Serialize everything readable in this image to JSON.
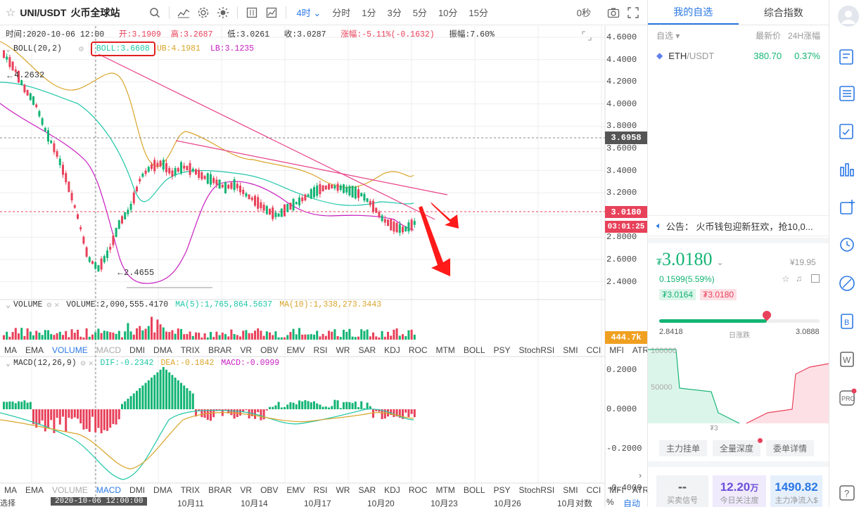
{
  "toolbar": {
    "symbol": "UNI/USDT",
    "exchange": "火币全球站",
    "periods": [
      "分时",
      "1分",
      "3分",
      "5分",
      "10分",
      "15分"
    ],
    "active_period": "4时",
    "countdown": "0秒"
  },
  "ohlc": {
    "time_label": "时间:2020-10-06 12:00",
    "open_label": "开:3.1909",
    "high_label": "高:3.2687",
    "low_label": "低:3.0261",
    "close_label": "收:3.0287",
    "change_label": "涨幅:-5.11%(-0.1632)",
    "amplitude_label": "振幅:7.60%"
  },
  "boll": {
    "name": "BOLL(20,2)",
    "mid_label": "BOLL:3.6608",
    "ub_label": "UB:4.1981",
    "lb_label": "LB:3.1235"
  },
  "price_axis": [
    "4.6000",
    "4.4000",
    "4.2000",
    "4.0000",
    "3.8000",
    "3.6000",
    "3.4000",
    "3.2000",
    "3.0000",
    "2.8000",
    "2.6000",
    "2.4000"
  ],
  "price_marks": {
    "high": "4.2632",
    "low": "2.4655",
    "crosshair_price": "3.6958",
    "last_price": "3.0180",
    "countdown": "03:01:25"
  },
  "volume": {
    "name": "VOLUME",
    "value_label": "VOLUME:2,090,555.4170",
    "ma5_label": "MA(5):1,765,864.5637",
    "ma10_label": "MA(10):1,338,273.3443",
    "axis_value": "444.7k"
  },
  "indicator_tabs": [
    "MA",
    "EMA",
    "VOLUME",
    "MACD",
    "DMI",
    "DMA",
    "TRIX",
    "BRAR",
    "VR",
    "OBV",
    "EMV",
    "RSI",
    "WR",
    "SAR",
    "KDJ",
    "ROC",
    "MTM",
    "BOLL",
    "PSY",
    "StochRSI",
    "SMI",
    "CCI",
    "MFI",
    "ATR"
  ],
  "macd": {
    "name": "MACD(12,26,9)",
    "dif_label": "DIF:-0.2342",
    "dea_label": "DEA:-0.1842",
    "macd_label": "MACD:-0.0999",
    "axis": [
      "0.2000",
      "0.0000",
      "-0.2000",
      "-0.4000"
    ]
  },
  "time_axis": {
    "crosshair_time": "2020-10-06 12:00:00",
    "dates": [
      "10月11",
      "10月14",
      "10月17",
      "10月20",
      "10月23",
      "10月26",
      "10月"
    ],
    "log_label": "对数",
    "pct_label": "%",
    "auto_label": "自动",
    "left_cut": "选择"
  },
  "right_panel": {
    "tabs": [
      "我的自选",
      "综合指数"
    ],
    "list_header": {
      "left": "自选",
      "price": "最新价",
      "change": "24H涨幅"
    },
    "watchlist": [
      {
        "coin": "ETH",
        "quote": "/USDT",
        "price": "380.70",
        "change": "0.37%"
      }
    ],
    "announcement": "公告：  火币钱包迎新狂欢，抢10,0...",
    "price_big": "3.0180",
    "price_prefix": "₮",
    "cny": "¥19.95",
    "change": "0.1599(5.59%)",
    "bid": "₮3.0164",
    "ask": "₮3.0180",
    "day_low": "2.8418",
    "day_range_label": "日涨跌",
    "day_high": "3.0888",
    "day_progress": 0.67,
    "depth_label_100k": "100000",
    "depth_label_50k": "50000",
    "depth_x_label": "₮3",
    "depth_tabs": [
      "主力挂单",
      "全量深度",
      "委单详情"
    ],
    "stats": [
      {
        "value": "--",
        "label": "买卖信号"
      },
      {
        "value": "12.20",
        "unit": "万",
        "label": "今日关注度"
      },
      {
        "value": "1490.82",
        "label": "主力净流入$"
      }
    ]
  },
  "sidebar": {
    "icons": [
      "avatar",
      "watchlist-icon",
      "news-icon",
      "notes-icon",
      "chart-bar-icon",
      "add-window-icon",
      "alarm-icon",
      "compass-icon",
      "ledger-icon",
      "w-icon",
      "pro-icon",
      "help-icon"
    ],
    "pro_label": "PRO",
    "help_label": "?"
  },
  "colors": {
    "up": "#13b474",
    "down": "#e8415a",
    "accent": "#2b78e4",
    "mid": "#21c7a8",
    "ub": "#d9a52b",
    "lb": "#c81fc1"
  }
}
